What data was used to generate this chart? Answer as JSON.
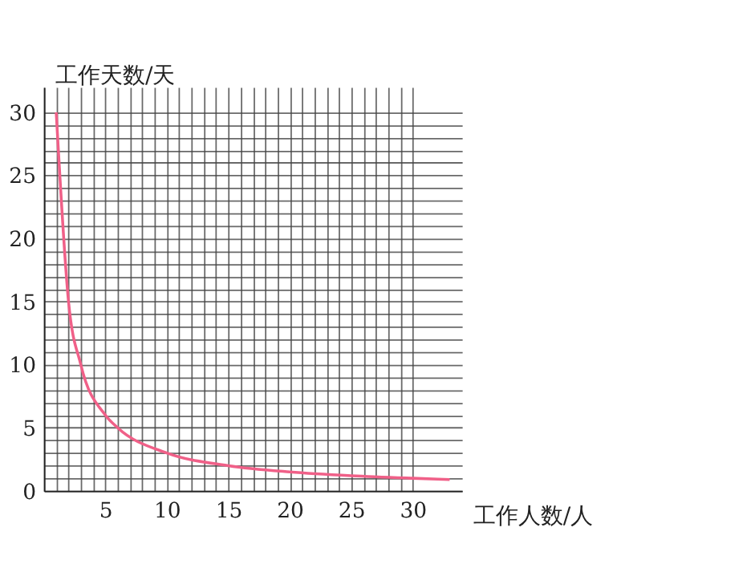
{
  "chart_data": {
    "type": "line",
    "xlabel": "工作人数/人",
    "ylabel": "工作天数/天",
    "x": [
      1,
      2,
      3,
      5,
      6,
      10,
      15,
      20,
      25,
      30,
      33
    ],
    "series": [
      {
        "color": "#f06088",
        "values": [
          30,
          15,
          10,
          6,
          5,
          3,
          2,
          1.5,
          1.2,
          1,
          0.9
        ]
      }
    ],
    "xlim": [
      0,
      34
    ],
    "ylim": [
      0,
      32
    ],
    "xticks": [
      {
        "value": 0,
        "label": null
      },
      {
        "value": 1,
        "label": null
      },
      {
        "value": 2,
        "label": null
      },
      {
        "value": 3,
        "label": null
      },
      {
        "value": 4,
        "label": null
      },
      5,
      {
        "value": 6,
        "label": null
      },
      {
        "value": 7,
        "label": null
      },
      {
        "value": 8,
        "label": null
      },
      {
        "value": 9,
        "label": null
      },
      10,
      {
        "value": 11,
        "label": null
      },
      {
        "value": 12,
        "label": null
      },
      {
        "value": 13,
        "label": null
      },
      {
        "value": 14,
        "label": null
      },
      15,
      {
        "value": 16,
        "label": null
      },
      {
        "value": 17,
        "label": null
      },
      {
        "value": 18,
        "label": null
      },
      {
        "value": 19,
        "label": null
      },
      20,
      {
        "value": 21,
        "label": null
      },
      {
        "value": 22,
        "label": null
      },
      {
        "value": 23,
        "label": null
      },
      {
        "value": 24,
        "label": null
      },
      25,
      {
        "value": 26,
        "label": null
      },
      {
        "value": 27,
        "label": null
      },
      {
        "value": 28,
        "label": null
      },
      {
        "value": 29,
        "label": null
      },
      30
    ],
    "yticks": [
      0,
      {
        "value": 1,
        "label": null
      },
      {
        "value": 2,
        "label": null
      },
      {
        "value": 3,
        "label": null
      },
      {
        "value": 4,
        "label": null
      },
      5,
      {
        "value": 6,
        "label": null
      },
      {
        "value": 7,
        "label": null
      },
      {
        "value": 8,
        "label": null
      },
      {
        "value": 9,
        "label": null
      },
      10,
      {
        "value": 11,
        "label": null
      },
      {
        "value": 12,
        "label": null
      },
      {
        "value": 13,
        "label": null
      },
      {
        "value": 14,
        "label": null
      },
      15,
      {
        "value": 16,
        "label": null
      },
      {
        "value": 17,
        "label": null
      },
      {
        "value": 18,
        "label": null
      },
      {
        "value": 19,
        "label": null
      },
      20,
      {
        "value": 21,
        "label": null
      },
      {
        "value": 22,
        "label": null
      },
      {
        "value": 23,
        "label": null
      },
      {
        "value": 24,
        "label": null
      },
      25,
      {
        "value": 26,
        "label": null
      },
      {
        "value": 27,
        "label": null
      },
      {
        "value": 28,
        "label": null
      },
      {
        "value": 29,
        "label": null
      },
      30
    ],
    "grid": true,
    "marker": "none",
    "line_style": "solid"
  }
}
